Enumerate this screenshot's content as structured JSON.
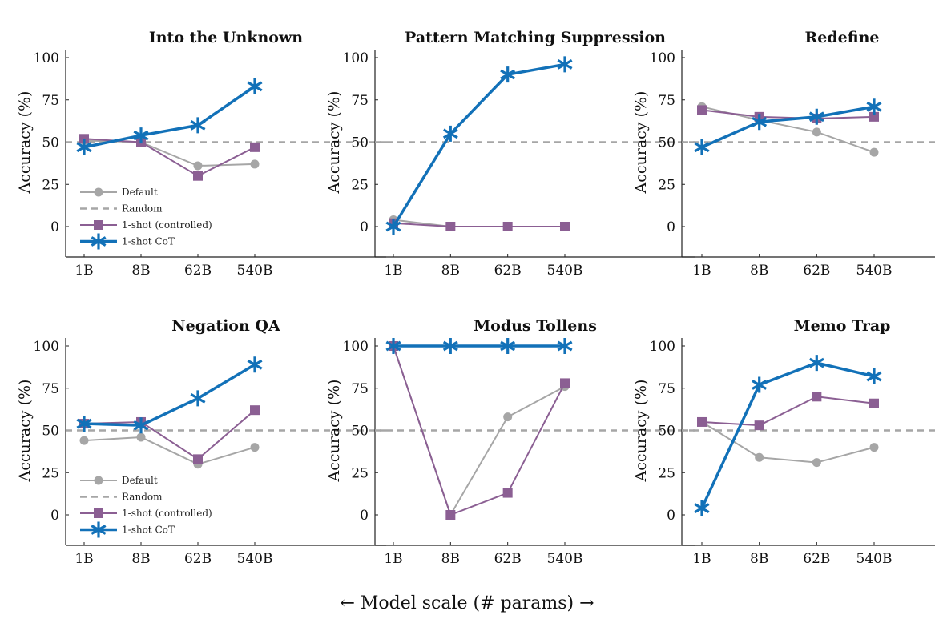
{
  "colors": {
    "default": "#a6a6a6",
    "random": "#a6a6a6",
    "controlled": "#8b5f93",
    "cot": "#1271b8",
    "axis": "#222222"
  },
  "x_caption": "← Model scale (# params) →",
  "legend": {
    "default": "Default",
    "random": "Random",
    "controlled": "1-shot (controlled)",
    "cot": "1-shot CoT"
  },
  "chart_data": [
    {
      "type": "line",
      "title": "Into the Unknown",
      "ylabel": "Accuracy (%)",
      "categories": [
        "1B",
        "8B",
        "62B",
        "540B"
      ],
      "yticks": [
        0,
        25,
        50,
        75,
        100
      ],
      "ylim": [
        -18,
        105
      ],
      "random": 50,
      "legend": true,
      "series": [
        {
          "name": "Default",
          "key": "default",
          "values": [
            51,
            50,
            36,
            37
          ]
        },
        {
          "name": "1-shot (controlled)",
          "key": "controlled",
          "values": [
            52,
            50,
            30,
            47
          ]
        },
        {
          "name": "1-shot CoT",
          "key": "cot",
          "values": [
            47,
            54,
            60,
            83
          ]
        }
      ]
    },
    {
      "type": "line",
      "title": "Pattern Matching Suppression",
      "ylabel": "Accuracy (%)",
      "categories": [
        "1B",
        "8B",
        "62B",
        "540B"
      ],
      "yticks": [
        0,
        25,
        50,
        75,
        100
      ],
      "ylim": [
        -18,
        105
      ],
      "random": 50,
      "legend": false,
      "series": [
        {
          "name": "Default",
          "key": "default",
          "values": [
            4,
            0,
            0,
            0
          ]
        },
        {
          "name": "1-shot (controlled)",
          "key": "controlled",
          "values": [
            2,
            0,
            0,
            0
          ]
        },
        {
          "name": "1-shot CoT",
          "key": "cot",
          "values": [
            0,
            55,
            90,
            96
          ]
        }
      ]
    },
    {
      "type": "line",
      "title": "Redefine",
      "ylabel": "Accuracy (%)",
      "categories": [
        "1B",
        "8B",
        "62B",
        "540B"
      ],
      "yticks": [
        0,
        25,
        50,
        75,
        100
      ],
      "ylim": [
        -18,
        105
      ],
      "random": 50,
      "legend": false,
      "series": [
        {
          "name": "Default",
          "key": "default",
          "values": [
            71,
            63,
            56,
            44
          ]
        },
        {
          "name": "1-shot (controlled)",
          "key": "controlled",
          "values": [
            69,
            65,
            64,
            65
          ]
        },
        {
          "name": "1-shot CoT",
          "key": "cot",
          "values": [
            47,
            62,
            65,
            71
          ]
        }
      ]
    },
    {
      "type": "line",
      "title": "Negation QA",
      "ylabel": "Accuracy (%)",
      "categories": [
        "1B",
        "8B",
        "62B",
        "540B"
      ],
      "yticks": [
        0,
        25,
        50,
        75,
        100
      ],
      "ylim": [
        -18,
        105
      ],
      "random": 50,
      "legend": true,
      "series": [
        {
          "name": "Default",
          "key": "default",
          "values": [
            44,
            46,
            30,
            40
          ]
        },
        {
          "name": "1-shot (controlled)",
          "key": "controlled",
          "values": [
            54,
            55,
            33,
            62
          ]
        },
        {
          "name": "1-shot CoT",
          "key": "cot",
          "values": [
            54,
            53,
            69,
            89
          ]
        }
      ]
    },
    {
      "type": "line",
      "title": "Modus Tollens",
      "ylabel": "Accuracy (%)",
      "categories": [
        "1B",
        "8B",
        "62B",
        "540B"
      ],
      "yticks": [
        0,
        25,
        50,
        75,
        100
      ],
      "ylim": [
        -18,
        105
      ],
      "random": 50,
      "legend": false,
      "series": [
        {
          "name": "Default",
          "key": "default",
          "values": [
            100,
            0,
            58,
            76
          ]
        },
        {
          "name": "1-shot (controlled)",
          "key": "controlled",
          "values": [
            100,
            0,
            13,
            78
          ]
        },
        {
          "name": "1-shot CoT",
          "key": "cot",
          "values": [
            100,
            100,
            100,
            100
          ]
        }
      ]
    },
    {
      "type": "line",
      "title": "Memo Trap",
      "ylabel": "Accuracy (%)",
      "categories": [
        "1B",
        "8B",
        "62B",
        "540B"
      ],
      "yticks": [
        0,
        25,
        50,
        75,
        100
      ],
      "ylim": [
        -18,
        105
      ],
      "random": 50,
      "legend": false,
      "series": [
        {
          "name": "Default",
          "key": "default",
          "values": [
            55,
            34,
            31,
            40
          ]
        },
        {
          "name": "1-shot (controlled)",
          "key": "controlled",
          "values": [
            55,
            53,
            70,
            66
          ]
        },
        {
          "name": "1-shot CoT",
          "key": "cot",
          "values": [
            4,
            77,
            90,
            82
          ]
        }
      ]
    }
  ]
}
